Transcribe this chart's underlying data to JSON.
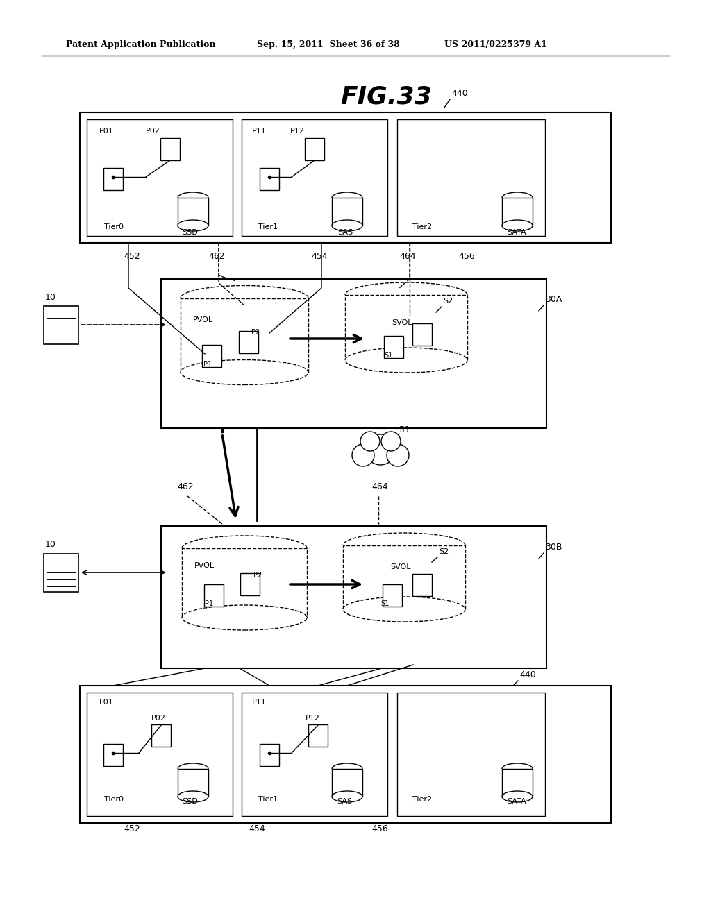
{
  "title": "FIG.33",
  "header_left": "Patent Application Publication",
  "header_mid": "Sep. 15, 2011  Sheet 36 of 38",
  "header_right": "US 2011/0225379 A1",
  "bg_color": "#ffffff",
  "line_color": "#000000"
}
